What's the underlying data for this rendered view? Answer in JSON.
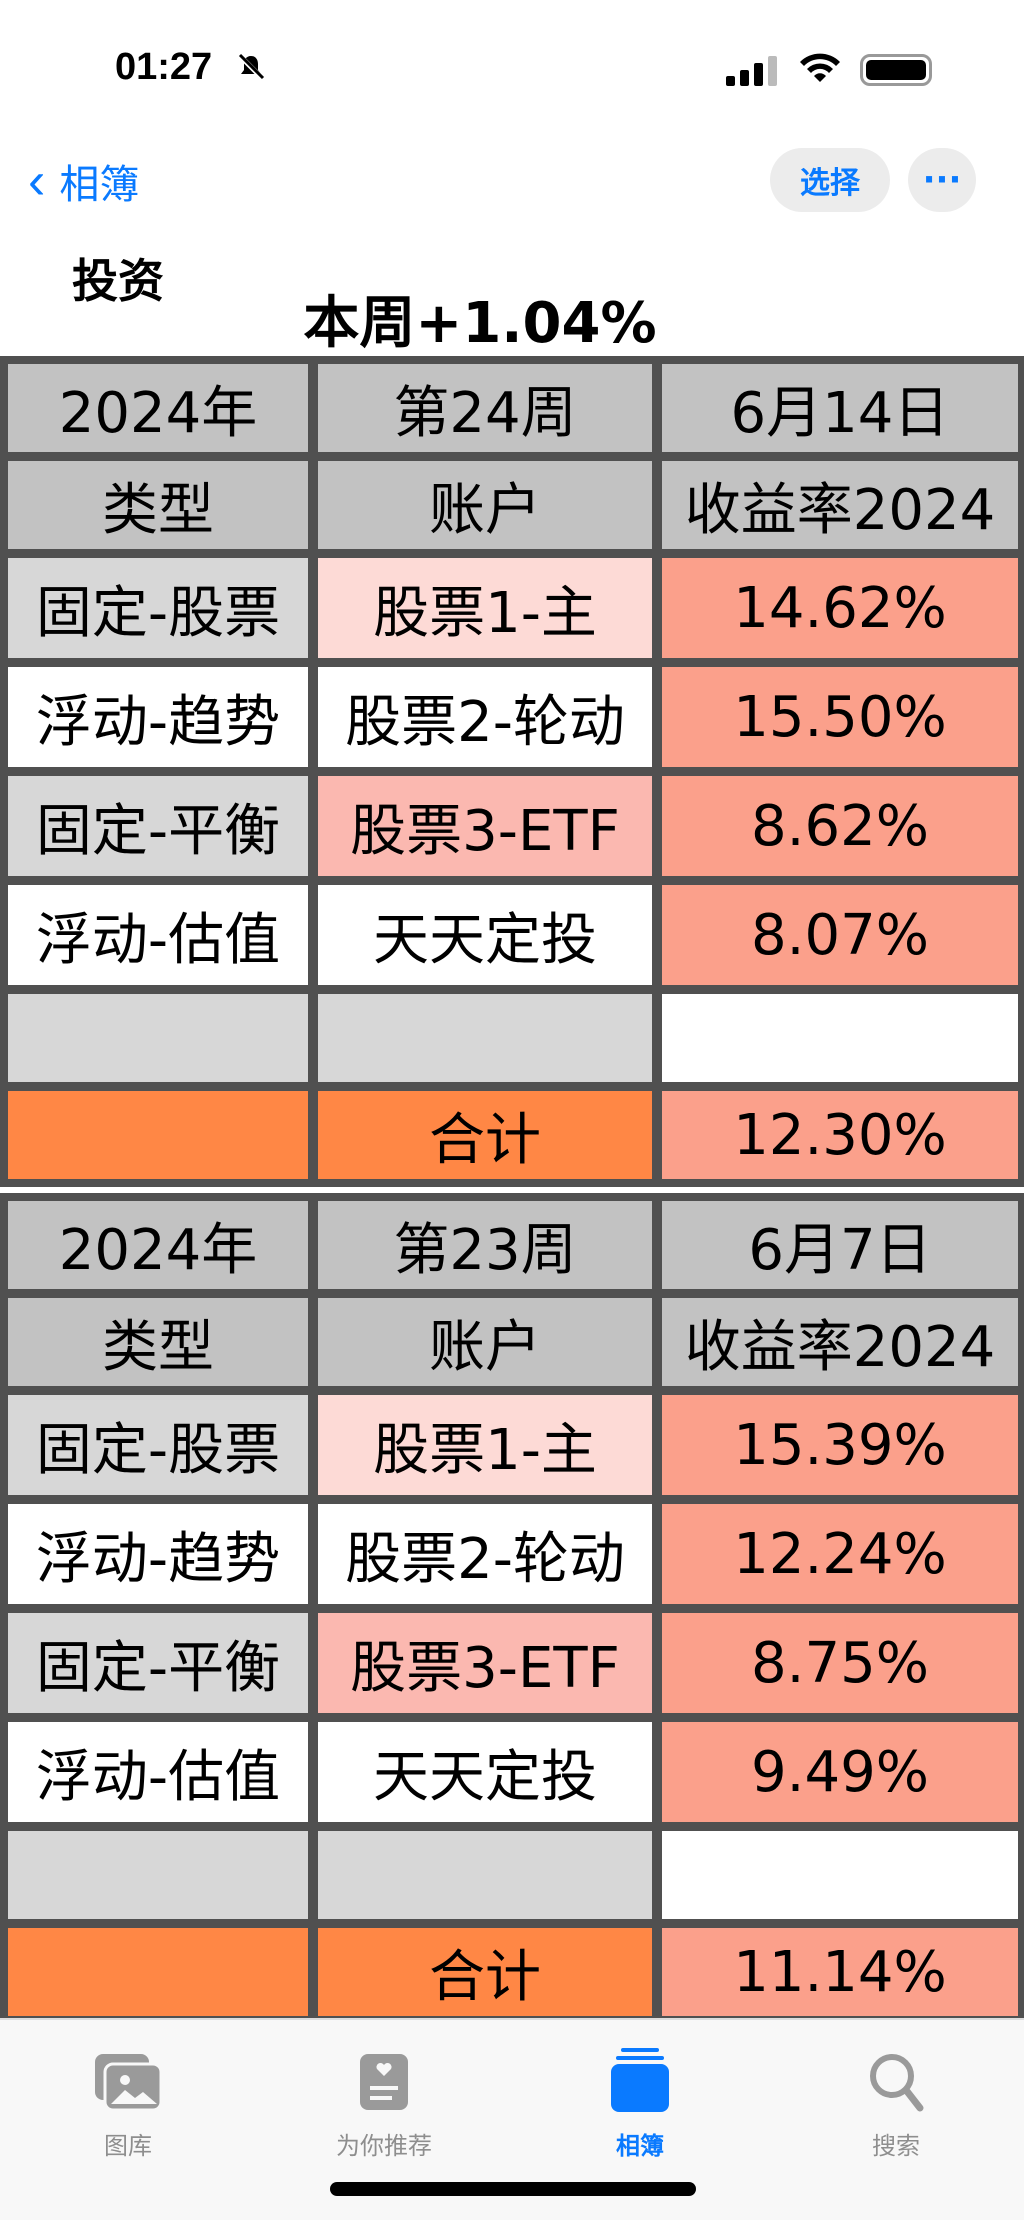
{
  "status_bar": {
    "time": "01:27"
  },
  "nav": {
    "back_label": "相簿",
    "select_label": "选择",
    "more_label": "···"
  },
  "album_title": "投资",
  "week_summary": "本周+1.04%",
  "tables": [
    {
      "header": [
        "2024年",
        "第24周",
        "6月14日"
      ],
      "columns": [
        "类型",
        "账户",
        "收益率2024"
      ],
      "rows": [
        {
          "type": "固定-股票",
          "account": "股票1-主",
          "return": "14.62%"
        },
        {
          "type": "浮动-趋势",
          "account": "股票2-轮动",
          "return": "15.50%"
        },
        {
          "type": "固定-平衡",
          "account": "股票3-ETF",
          "return": "8.62%"
        },
        {
          "type": "浮动-估值",
          "account": "天天定投",
          "return": "8.07%"
        },
        {
          "type": "",
          "account": "",
          "return": ""
        }
      ],
      "total": {
        "label": "合计",
        "return": "12.30%"
      }
    },
    {
      "header": [
        "2024年",
        "第23周",
        "6月7日"
      ],
      "columns": [
        "类型",
        "账户",
        "收益率2024"
      ],
      "rows": [
        {
          "type": "固定-股票",
          "account": "股票1-主",
          "return": "15.39%"
        },
        {
          "type": "浮动-趋势",
          "account": "股票2-轮动",
          "return": "12.24%"
        },
        {
          "type": "固定-平衡",
          "account": "股票3-ETF",
          "return": "8.75%"
        },
        {
          "type": "浮动-估值",
          "account": "天天定投",
          "return": "9.49%"
        },
        {
          "type": "",
          "account": "",
          "return": ""
        }
      ],
      "total": {
        "label": "合计",
        "return": "11.14%"
      }
    }
  ],
  "tab_bar": {
    "items": [
      {
        "label": "图库",
        "icon": "photo-library-icon"
      },
      {
        "label": "为你推荐",
        "icon": "for-you-icon"
      },
      {
        "label": "相簿",
        "icon": "albums-icon",
        "active": true
      },
      {
        "label": "搜索",
        "icon": "search-icon"
      }
    ]
  },
  "colors": {
    "accent": "#0a7aff",
    "header": "#c2c2c2",
    "orange": "#ff8745",
    "salmon": "#fba08b",
    "pink": "#fddad6"
  }
}
